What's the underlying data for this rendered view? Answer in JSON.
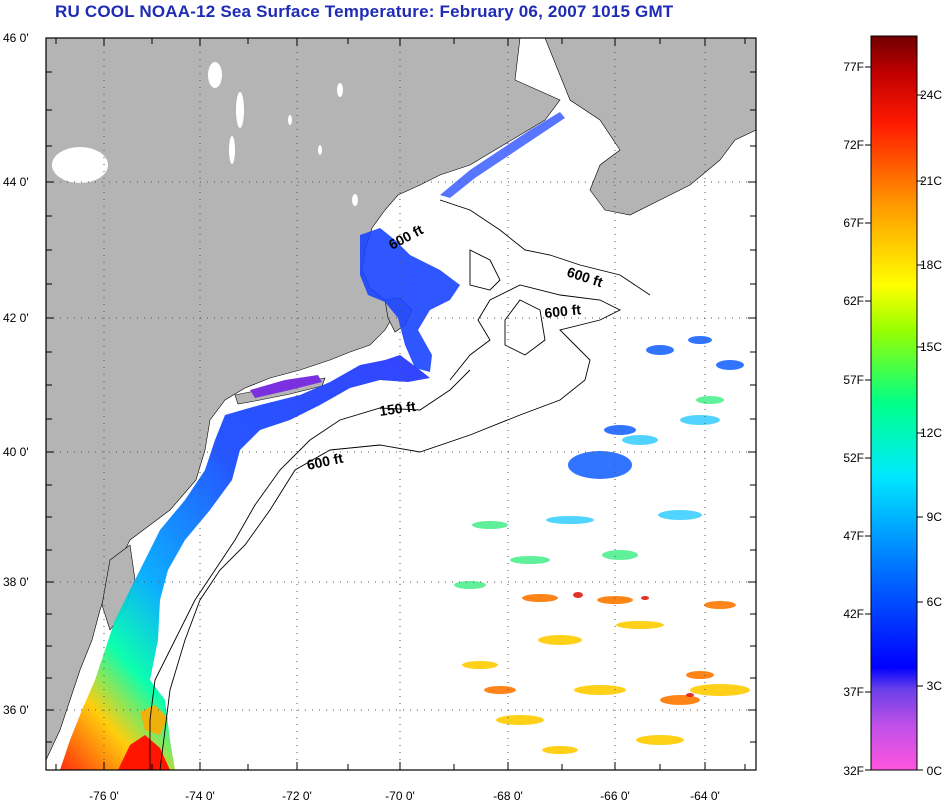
{
  "title": "RU COOL  NOAA-12  Sea Surface Temperature:  February 06, 2007 1015 GMT",
  "map": {
    "lat_labels": [
      "46 0'",
      "44 0'",
      "42 0'",
      "40 0'",
      "38 0'",
      "36 0'"
    ],
    "lon_labels": [
      "-76 0'",
      "-74 0'",
      "-72 0'",
      "-70 0'",
      "-68 0'",
      "-66 0'",
      "-64 0'"
    ],
    "contour_labels": [
      {
        "text": "600 ft",
        "rotate": -28
      },
      {
        "text": "600 ft",
        "rotate": 18
      },
      {
        "text": "600 ft",
        "rotate": -6
      },
      {
        "text": "150 ft",
        "rotate": -8
      },
      {
        "text": "600 ft",
        "rotate": -12
      }
    ],
    "colors": {
      "land": "#b4b4b4",
      "ocean": "#ffffff",
      "frame": "#000000",
      "grid": "#555555"
    }
  },
  "colorbar": {
    "fahrenheit_labels": [
      "77F",
      "72F",
      "67F",
      "62F",
      "57F",
      "52F",
      "47F",
      "42F",
      "37F",
      "32F"
    ],
    "celsius_labels": [
      "24C",
      "21C",
      "18C",
      "15C",
      "12C",
      "9C",
      "6C",
      "3C",
      "0C"
    ],
    "gradient_stops": [
      "#ff55dd",
      "#a855e8",
      "#0000ff",
      "#0077ff",
      "#00ffff",
      "#00ff66",
      "#ffff00",
      "#ff8800",
      "#ff0000",
      "#7a0000"
    ]
  }
}
